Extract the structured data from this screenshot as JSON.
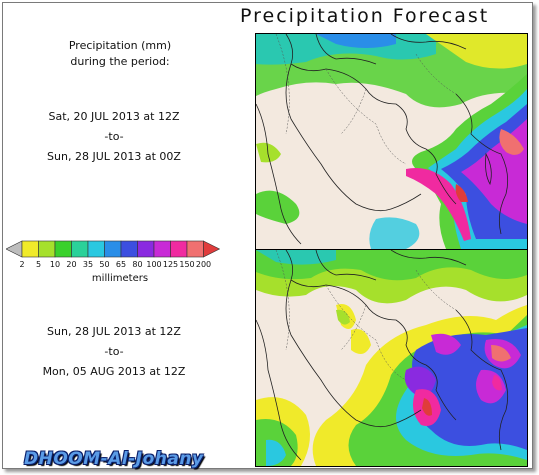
{
  "title": "Precipitation Forecast",
  "description": {
    "line1": "Precipitation (mm)",
    "line2": "during the period:"
  },
  "period1": {
    "start": "Sat, 20 JUL 2013 at 12Z",
    "sep": "-to-",
    "end": "Sun, 28 JUL 2013 at 00Z"
  },
  "period2": {
    "start": "Sun, 28 JUL 2013 at 12Z",
    "sep": "-to-",
    "end": "Mon, 05 AUG 2013 at 12Z"
  },
  "legend": {
    "units": "millimeters",
    "levels": [
      "2",
      "5",
      "10",
      "20",
      "35",
      "50",
      "65",
      "80",
      "100",
      "125",
      "150",
      "200"
    ],
    "colors": [
      "#bdbdbd",
      "#f0ea2a",
      "#a6e02c",
      "#3ad12c",
      "#2ad199",
      "#2ac8e0",
      "#2a8ee8",
      "#3c4fe0",
      "#8a2ae0",
      "#c82ad6",
      "#f02aa0",
      "#f07070",
      "#e03c3c"
    ]
  },
  "watermark": "DHOOM-Al-Johany"
}
